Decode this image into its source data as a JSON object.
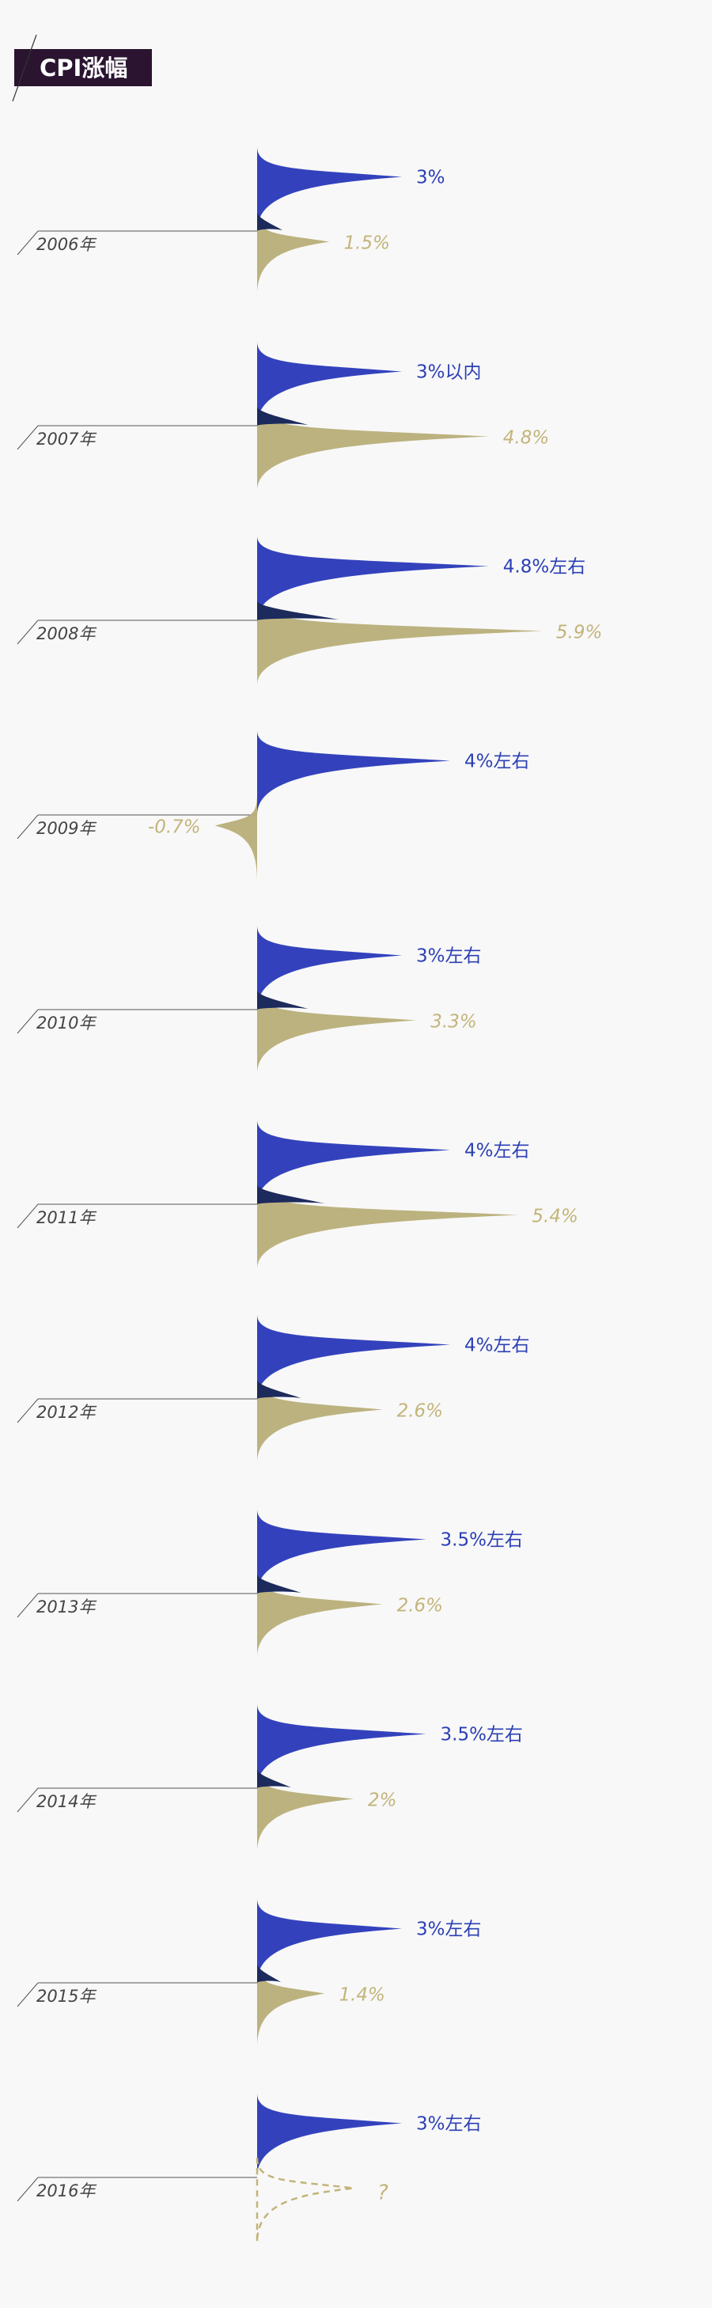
{
  "title": "CPI涨幅",
  "colors": {
    "target": "#2838b8",
    "actual": "#b8ae78",
    "overlap": "#1d2a5c",
    "label_target": "#2b3fb5",
    "label_actual": "#c3b47a",
    "year_line": "#555555",
    "year_text": "#444444",
    "axis": "#222222"
  },
  "chart_data": {
    "type": "area",
    "categories": [
      "2006年",
      "2007年",
      "2008年",
      "2009年",
      "2010年",
      "2011年",
      "2012年",
      "2013年",
      "2014年",
      "2015年",
      "2016年"
    ],
    "series": [
      {
        "values": [
          3,
          3,
          4.8,
          4,
          3,
          4,
          4,
          3.5,
          3.5,
          3,
          3
        ],
        "labels": [
          "3%",
          "3%以内",
          "4.8%左右",
          "4%左右",
          "3%左右",
          "4%左右",
          "4%左右",
          "3.5%左右",
          "3.5%左右",
          "3%左右",
          "3%左右"
        ]
      },
      {
        "values": [
          1.5,
          4.8,
          5.9,
          -0.7,
          3.3,
          5.4,
          2.6,
          2.6,
          2,
          1.4,
          null
        ],
        "labels": [
          "1.5%",
          "4.8%",
          "5.9%",
          "-0.7%",
          "3.3%",
          "5.4%",
          "2.6%",
          "2.6%",
          "2%",
          "1.4%",
          "?"
        ]
      }
    ]
  }
}
